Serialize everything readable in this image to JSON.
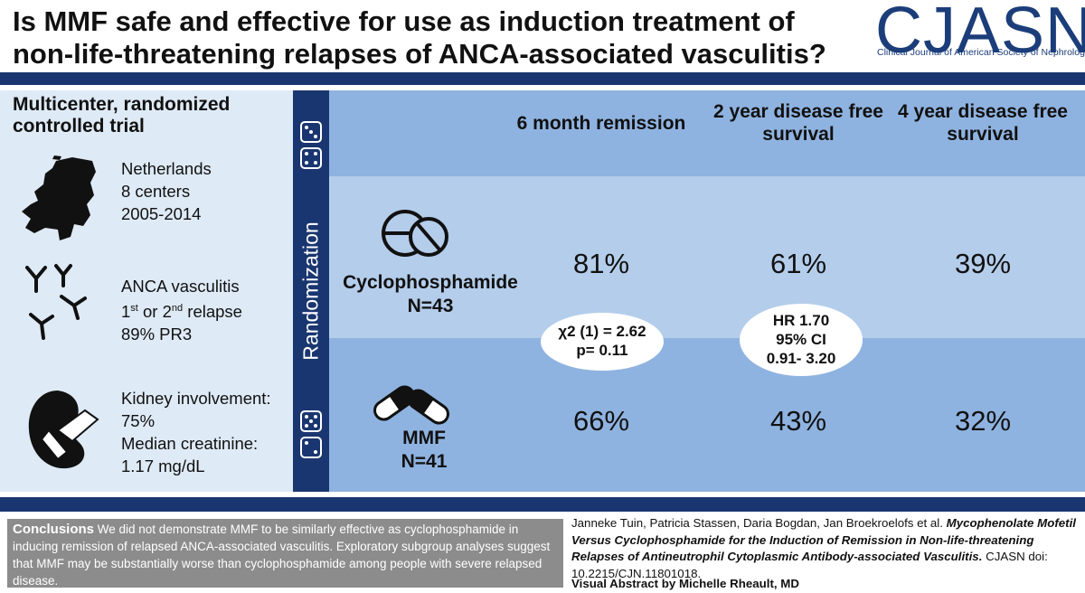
{
  "title": "Is MMF safe and effective for use as induction treatment of non-life-threatening relapses of ANCA-associated vasculitis?",
  "logo": {
    "name": "CJASN",
    "subtitle": "Clinical Journal of American Society of Nephrology"
  },
  "design": {
    "heading": "Multicenter, randomized controlled trial",
    "location": [
      "Netherlands",
      "8 centers",
      "2005-2014"
    ],
    "population": {
      "line1": "ANCA vasculitis",
      "line2_a": "1",
      "line2_sup_a": "st",
      "line2_b": " or 2",
      "line2_sup_b": "nd",
      "line2_c": " relapse",
      "line3": "89% PR3"
    },
    "kidney": [
      "Kidney involvement:",
      "75%",
      "Median creatinine:",
      "1.17 mg/dL"
    ]
  },
  "randomization_label": "Randomization",
  "columns": [
    "6 month remission",
    "2 year disease free survival",
    "4 year disease free survival"
  ],
  "arms": [
    {
      "name": "Cyclophosphamide",
      "n": "N=43",
      "values": [
        "81%",
        "61%",
        "39%"
      ]
    },
    {
      "name": "MMF",
      "n": "N=41",
      "values": [
        "66%",
        "43%",
        "32%"
      ]
    }
  ],
  "stats": {
    "chi": {
      "line1": "χ2 (1) = 2.62",
      "line2": "p= 0.11"
    },
    "hr": {
      "line1": "HR 1.70",
      "line2": "95% CI",
      "line3": "0.91- 3.20"
    }
  },
  "conclusions": {
    "label": "Conclusions",
    "text": " We did not demonstrate MMF to be similarly effective as cyclophosphamide in inducing remission of relapsed ANCA-associated vasculitis. Exploratory subgroup analyses suggest that MMF may be substantially worse than cyclophosphamide among people with severe relapsed disease."
  },
  "citation": {
    "authors": "Janneke Tuin, Patricia Stassen, Daria Bogdan, Jan Broekroelofs",
    "etal": " et al. ",
    "title": "Mycophenolate Mofetil Versus Cyclophosphamide for the Induction of Remission in Non-life-threatening Relapses of Antineutrophil Cytoplasmic Antibody-associated Vasculitis.",
    "doi": " CJASN doi: 10.2215/CJN.11801018."
  },
  "visual_abstract_by": "Visual Abstract by Michelle Rheault, MD",
  "colors": {
    "navy": "#1a3670",
    "mid_blue": "#8fb3e0",
    "light_blue": "#b4cdeb",
    "panel": "#deeaf6",
    "gray": "#8c8c8c"
  },
  "icons": [
    "netherlands-map-icon",
    "antibody-icon",
    "kidney-icon",
    "dice-icon",
    "pill-tablet-icon",
    "capsule-icon"
  ]
}
